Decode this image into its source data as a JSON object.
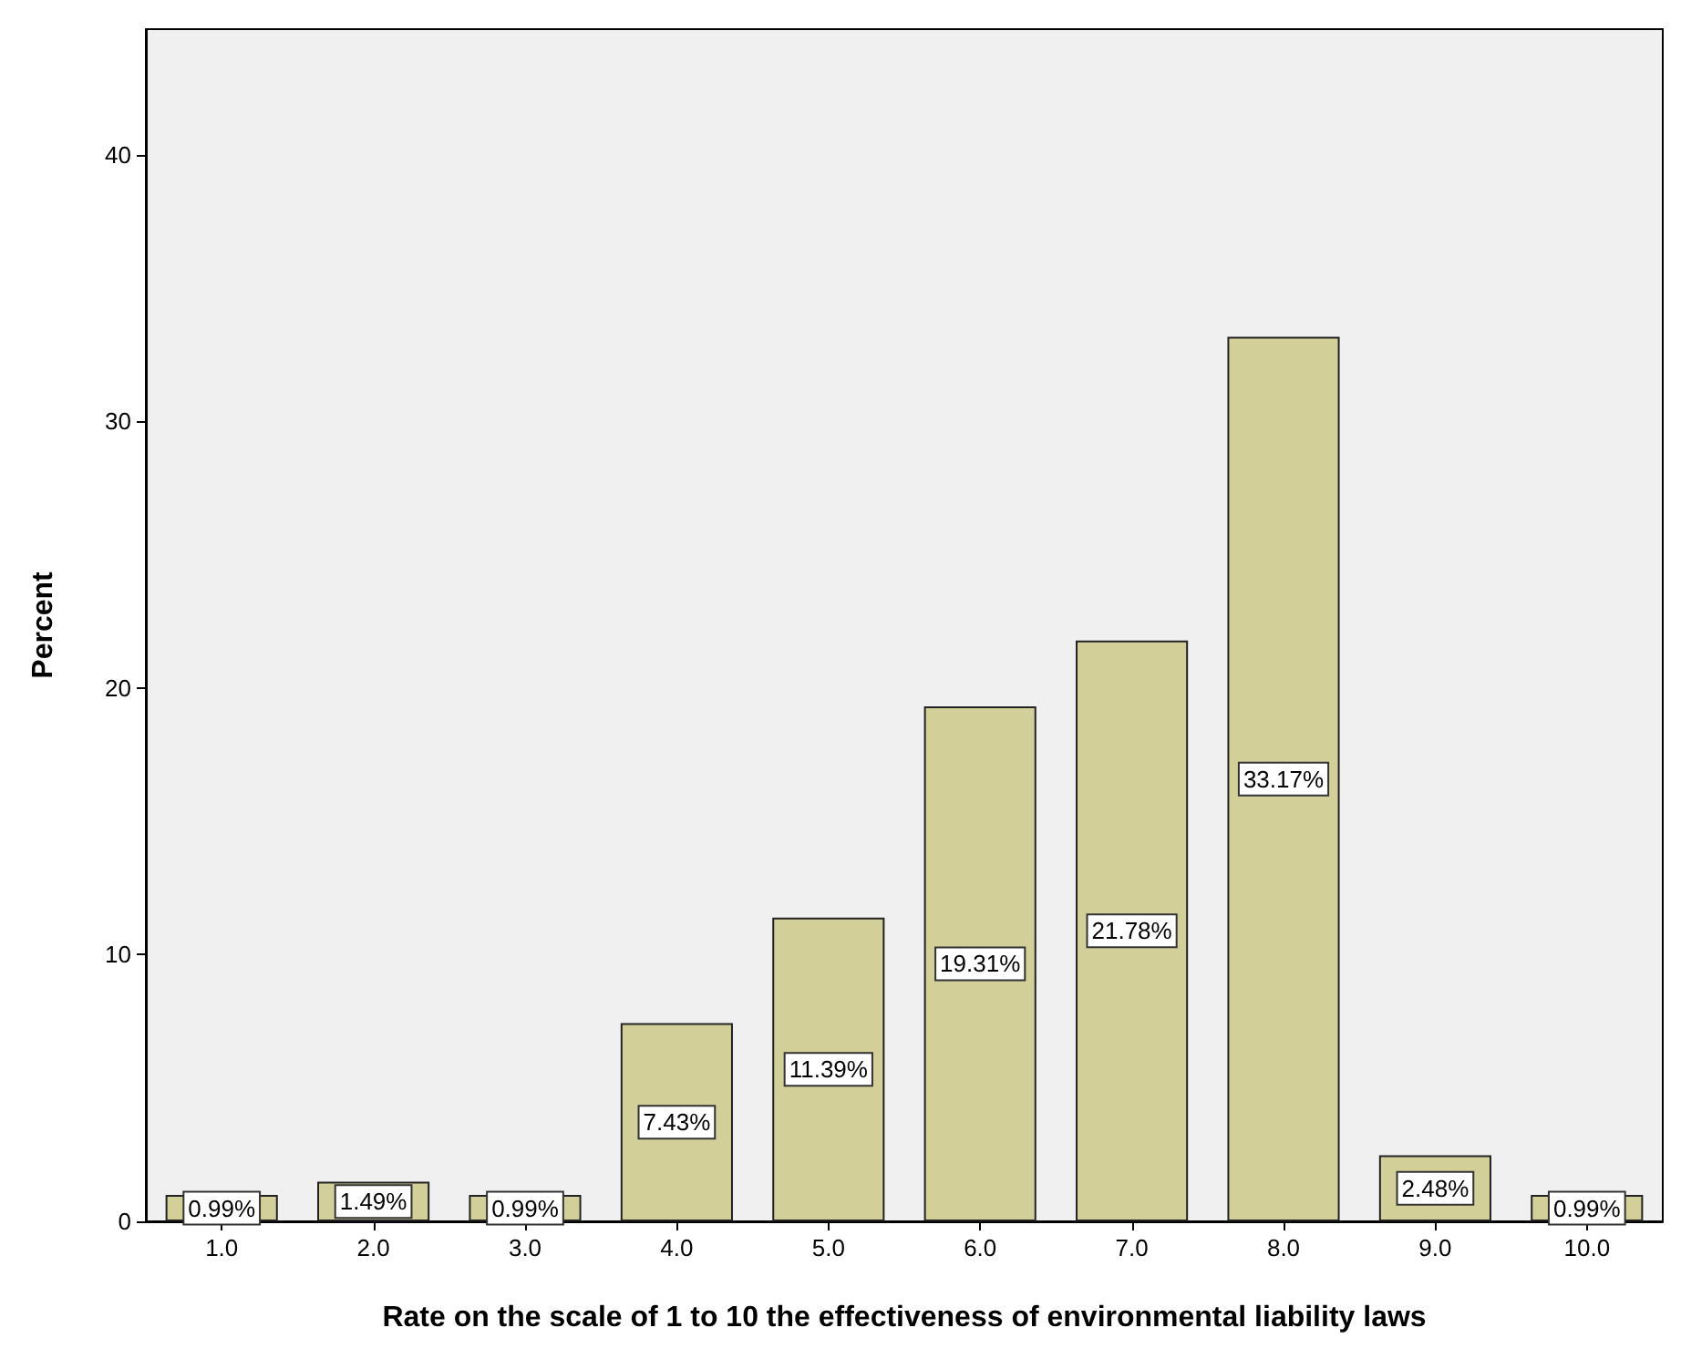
{
  "chart_data": {
    "type": "bar",
    "xlabel": "Rate on the scale of 1 to 10 the effectiveness of environmental liability laws",
    "ylabel": "Percent",
    "categories": [
      "1.0",
      "2.0",
      "3.0",
      "4.0",
      "5.0",
      "6.0",
      "7.0",
      "8.0",
      "9.0",
      "10.0"
    ],
    "values": [
      0.99,
      1.49,
      0.99,
      7.43,
      11.39,
      19.31,
      21.78,
      33.17,
      2.48,
      0.99
    ],
    "value_labels": [
      "0.99%",
      "1.49%",
      "0.99%",
      "7.43%",
      "11.39%",
      "19.31%",
      "21.78%",
      "33.17%",
      "2.48%",
      "0.99%"
    ],
    "color": "#d3cf98",
    "ylim": [
      0,
      44.7
    ],
    "yticks": [
      0,
      10,
      20,
      30,
      40
    ],
    "grid": false
  }
}
